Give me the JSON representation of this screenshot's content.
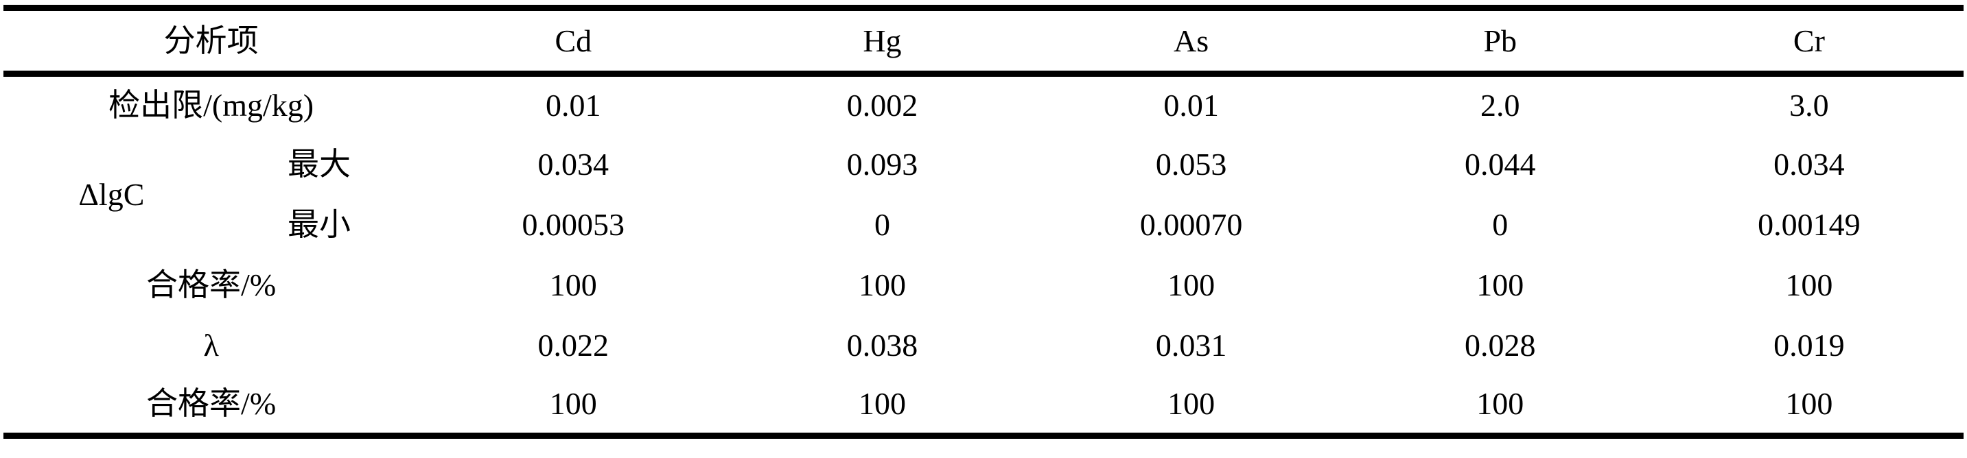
{
  "chart_data": {
    "type": "table",
    "header": [
      "分析项",
      "Cd",
      "Hg",
      "As",
      "Pb",
      "Cr"
    ],
    "rows": [
      {
        "label": "检出限/(mg/kg)",
        "values": [
          "0.01",
          "0.002",
          "0.01",
          "2.0",
          "3.0"
        ]
      },
      {
        "group": "ΔlgC",
        "label": "最大",
        "values": [
          "0.034",
          "0.093",
          "0.053",
          "0.044",
          "0.034"
        ]
      },
      {
        "group": "ΔlgC",
        "label": "最小",
        "values": [
          "0.00053",
          "0",
          "0.00070",
          "0",
          "0.00149"
        ]
      },
      {
        "label": "合格率/%",
        "values": [
          "100",
          "100",
          "100",
          "100",
          "100"
        ]
      },
      {
        "label": "λ",
        "values": [
          "0.022",
          "0.038",
          "0.031",
          "0.028",
          "0.019"
        ]
      },
      {
        "label": "合格率/%",
        "values": [
          "100",
          "100",
          "100",
          "100",
          "100"
        ]
      }
    ],
    "layout_hints": {
      "style": "three-line-table",
      "grid": "off",
      "vertical_rules": "none"
    },
    "colors": {
      "text": "#000000",
      "rule": "#000000",
      "background": "#ffffff"
    }
  }
}
